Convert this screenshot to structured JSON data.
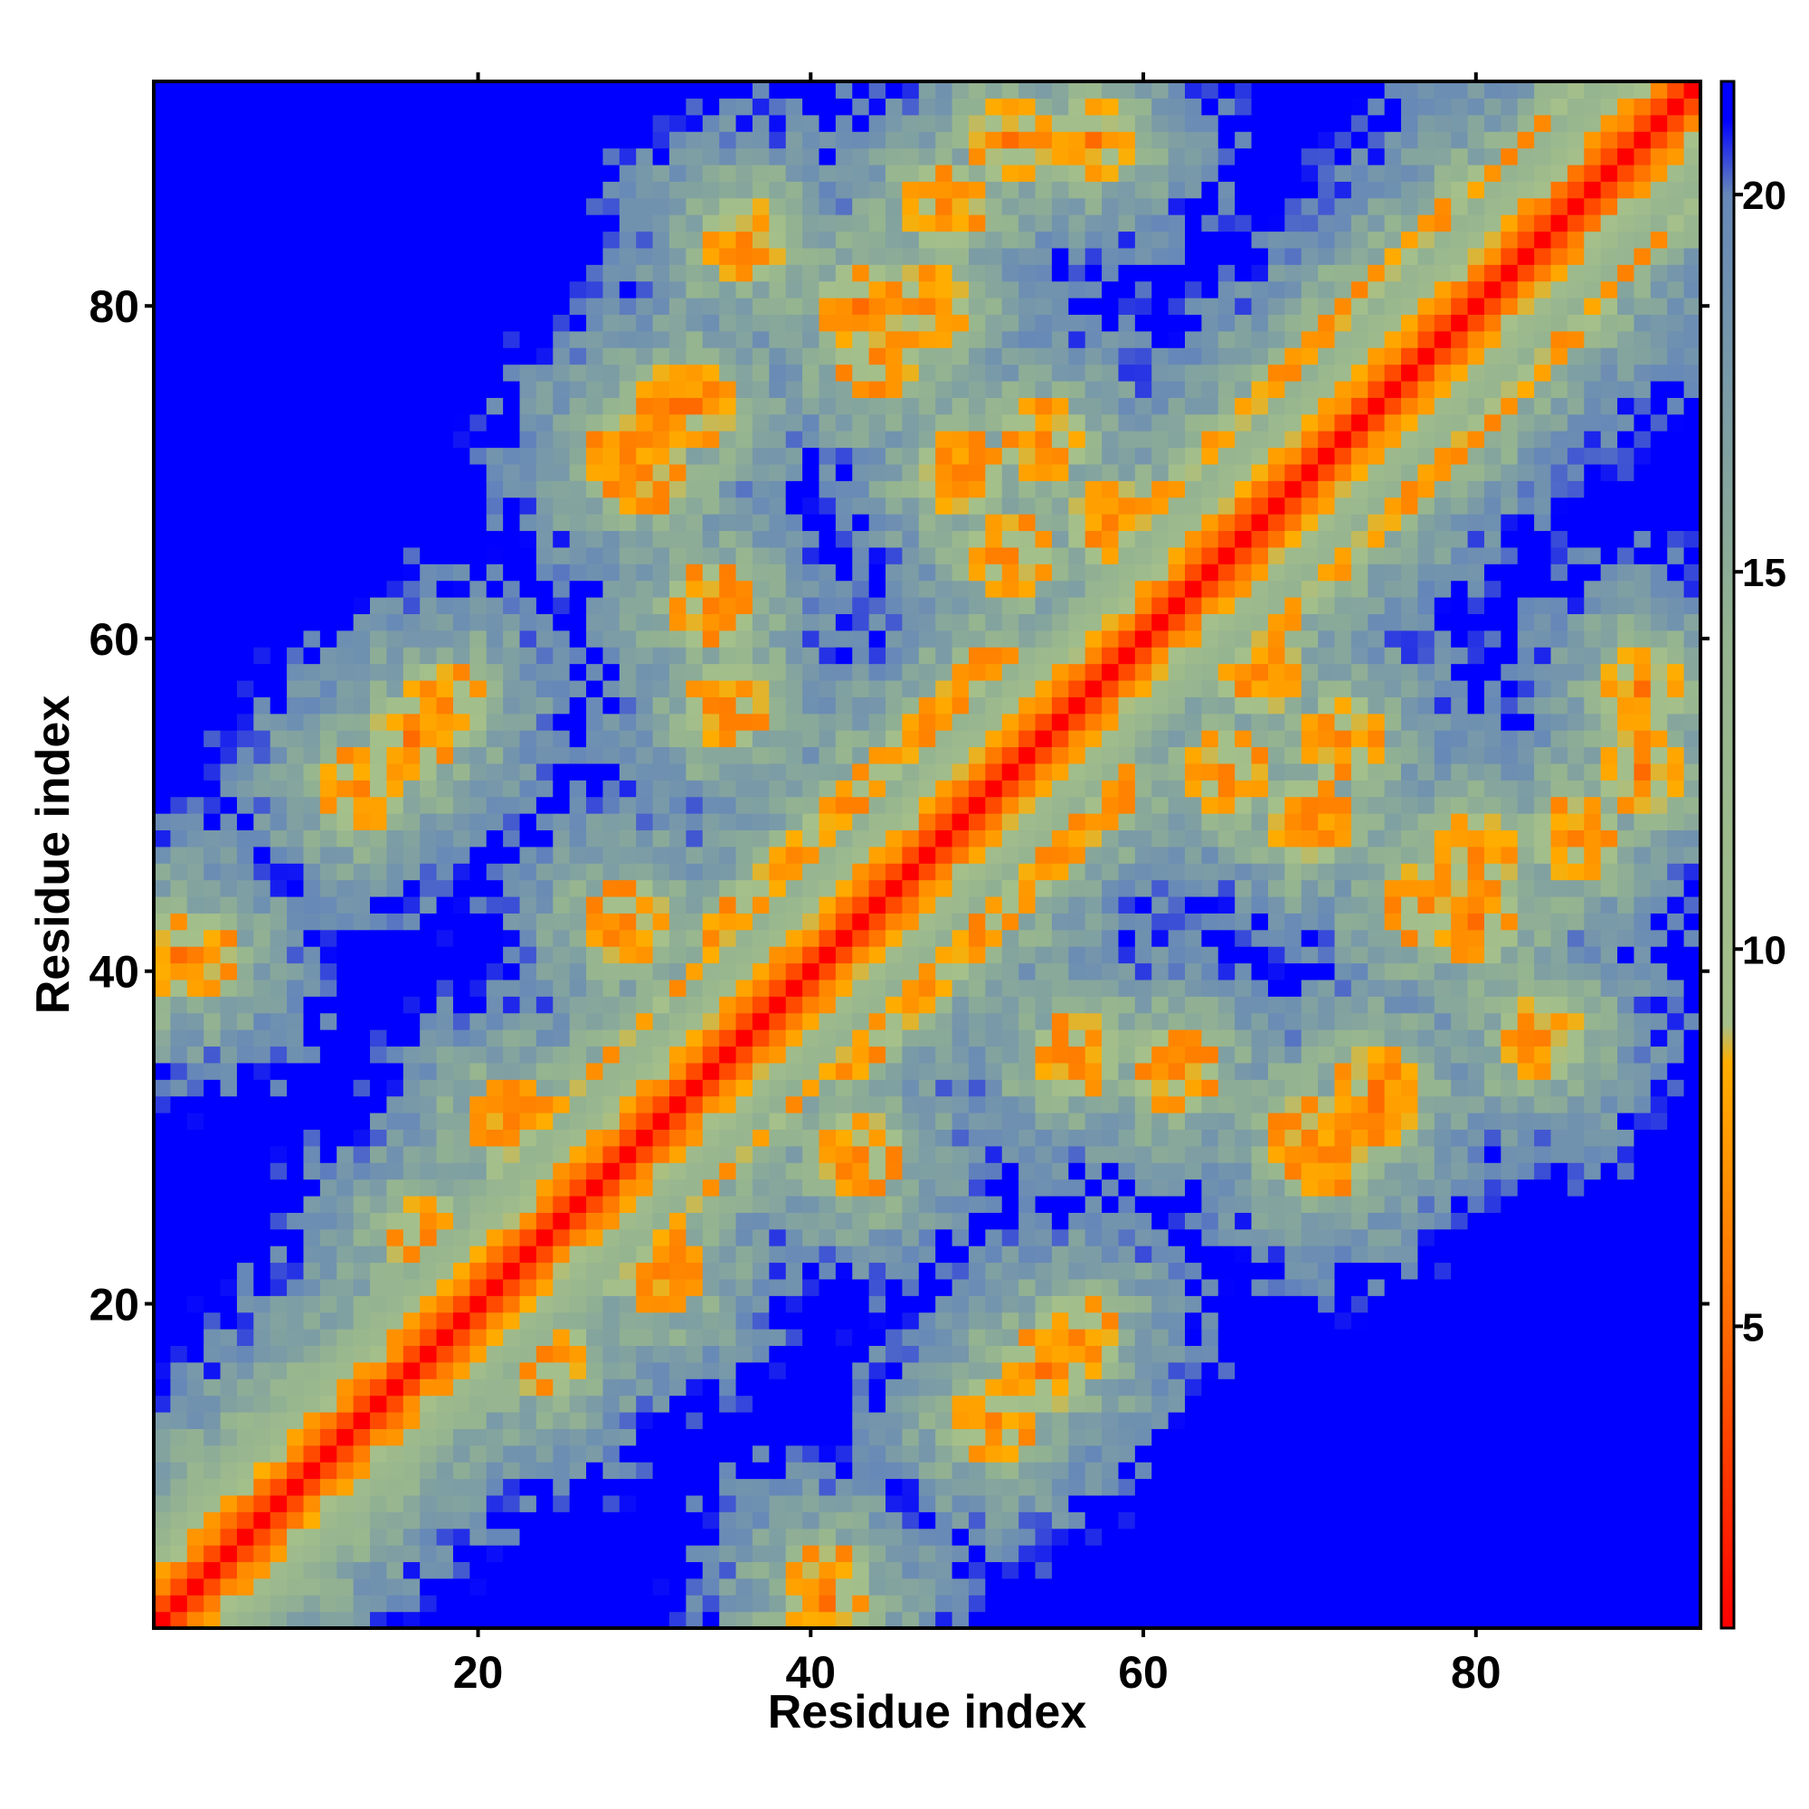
{
  "chart_data": {
    "type": "heatmap",
    "title": "",
    "xlabel": "Residue index",
    "ylabel": "Residue index",
    "n_residues": 93,
    "xlim": [
      1,
      93
    ],
    "ylim": [
      1,
      93
    ],
    "x_ticks": [
      20,
      40,
      60,
      80
    ],
    "y_ticks": [
      20,
      40,
      60,
      80
    ],
    "x_tick_labels": [
      "20",
      "40",
      "60",
      "80"
    ],
    "y_tick_labels": [
      "20",
      "40",
      "60",
      "80"
    ],
    "colorbar": {
      "range": [
        1,
        21.5
      ],
      "ticks": [
        5,
        10,
        15,
        20
      ],
      "tick_labels": [
        "5",
        "10",
        "15",
        "20"
      ],
      "stops": [
        {
          "value": 1,
          "color": "#ff0000"
        },
        {
          "value": 5,
          "color": "#ff6a00"
        },
        {
          "value": 8.5,
          "color": "#ffae00"
        },
        {
          "value": 9,
          "color": "#a5c08a"
        },
        {
          "value": 14,
          "color": "#95b490"
        },
        {
          "value": 20,
          "color": "#6688b8"
        },
        {
          "value": 21,
          "color": "#0000ff"
        }
      ],
      "placement": "right"
    },
    "matrix_description": "symmetric pairwise residue distance map; values below 8 (orange/red) mark contacts, blue marks distances beyond 21",
    "contact_bands": [
      {
        "i_start": 2,
        "j_start": 5,
        "length": 20,
        "type": "parallel"
      },
      {
        "i_start": 23,
        "j_start": 27,
        "length": 12,
        "type": "parallel"
      },
      {
        "i_start": 36,
        "j_start": 42,
        "length": 10,
        "type": "parallel"
      },
      {
        "i_start": 44,
        "j_start": 50,
        "length": 8,
        "type": "parallel"
      },
      {
        "i_start": 62,
        "j_start": 67,
        "length": 20,
        "type": "parallel"
      },
      {
        "i_start": 80,
        "j_start": 84,
        "length": 10,
        "type": "parallel"
      }
    ],
    "contact_patches": [
      {
        "i": 24,
        "j": 17,
        "value": 6
      },
      {
        "i": 31,
        "j": 22,
        "value": 6
      },
      {
        "i": 32,
        "j": 74,
        "value": 5
      },
      {
        "i": 34,
        "j": 62,
        "value": 6
      },
      {
        "i": 35,
        "j": 56,
        "value": 6
      },
      {
        "i": 47,
        "j": 80,
        "value": 6
      },
      {
        "i": 52,
        "j": 90,
        "value": 5
      },
      {
        "i": 57,
        "j": 90,
        "value": 5
      },
      {
        "i": 58,
        "j": 67,
        "value": 6
      },
      {
        "i": 70,
        "j": 30,
        "value": 6
      },
      {
        "i": 72,
        "j": 54,
        "value": 6
      },
      {
        "i": 74,
        "j": 33,
        "value": 5
      },
      {
        "i": 77,
        "j": 44,
        "value": 6
      },
      {
        "i": 80,
        "j": 43,
        "value": 5
      },
      {
        "i": 90,
        "j": 57,
        "value": 5
      },
      {
        "i": 3,
        "j": 41,
        "value": 6
      },
      {
        "i": 13,
        "j": 51,
        "value": 6
      },
      {
        "i": 18,
        "j": 56,
        "value": 6
      },
      {
        "i": 29,
        "j": 71,
        "value": 6
      },
      {
        "i": 49,
        "j": 70,
        "value": 6
      },
      {
        "i": 54,
        "j": 16,
        "value": 5
      },
      {
        "i": 65,
        "j": 52,
        "value": 6
      },
      {
        "i": 86,
        "j": 48,
        "value": 6
      },
      {
        "i": 43,
        "j": 29,
        "value": 6
      },
      {
        "i": 41,
        "j": 2,
        "value": 5
      },
      {
        "i": 84,
        "j": 36,
        "value": 6
      }
    ]
  }
}
